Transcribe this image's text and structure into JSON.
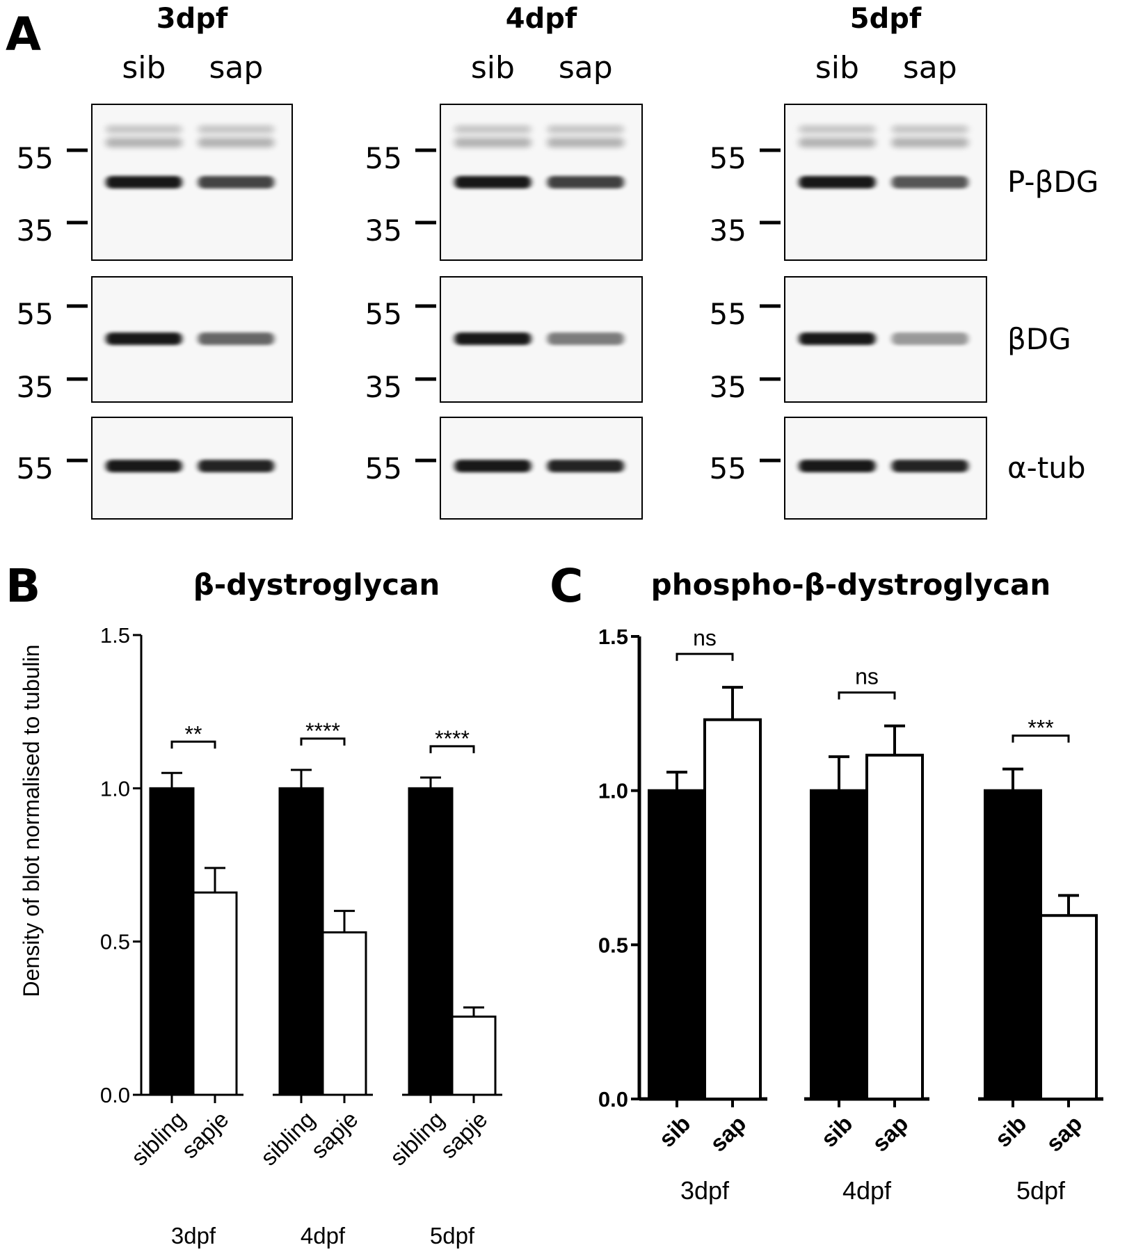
{
  "panel_a": {
    "letter": "A",
    "blots": [
      {
        "title": "3dpf",
        "lanes": [
          "sib",
          "sap"
        ]
      },
      {
        "title": "4dpf",
        "lanes": [
          "sib",
          "sap"
        ]
      },
      {
        "title": "5dpf",
        "lanes": [
          "sib",
          "sap"
        ]
      }
    ],
    "rows": [
      {
        "label": "P-βDG",
        "markers": [
          "55",
          "35"
        ]
      },
      {
        "label": "βDG",
        "markers": [
          "55",
          "35"
        ]
      },
      {
        "label": "α-tub",
        "markers": [
          "55"
        ]
      }
    ]
  },
  "panel_b": {
    "letter": "B"
  },
  "panel_c": {
    "letter": "C"
  },
  "chart_data": [
    {
      "type": "bar",
      "title": "β-dystroglycan",
      "ylabel": "Density of blot normalised to tubulin",
      "ylim": [
        0,
        1.5
      ],
      "yticks": [
        "0.0",
        "0.5",
        "1.0",
        "1.5"
      ],
      "groups": [
        "3dpf",
        "4dpf",
        "5dpf"
      ],
      "categories": [
        "sibling",
        "sapje"
      ],
      "bars": [
        {
          "group": "3dpf",
          "category": "sibling",
          "value": 1.0,
          "error": 0.05,
          "fill": "#000000"
        },
        {
          "group": "3dpf",
          "category": "sapje",
          "value": 0.66,
          "error": 0.08,
          "fill": "#ffffff"
        },
        {
          "group": "4dpf",
          "category": "sibling",
          "value": 1.0,
          "error": 0.06,
          "fill": "#000000"
        },
        {
          "group": "4dpf",
          "category": "sapje",
          "value": 0.53,
          "error": 0.07,
          "fill": "#ffffff"
        },
        {
          "group": "5dpf",
          "category": "sibling",
          "value": 1.0,
          "error": 0.035,
          "fill": "#000000"
        },
        {
          "group": "5dpf",
          "category": "sapje",
          "value": 0.255,
          "error": 0.03,
          "fill": "#ffffff"
        }
      ],
      "significance": [
        {
          "group": "3dpf",
          "label": "**"
        },
        {
          "group": "4dpf",
          "label": "****"
        },
        {
          "group": "5dpf",
          "label": "****"
        }
      ]
    },
    {
      "type": "bar",
      "title": "phospho-β-dystroglycan",
      "ylabel": "",
      "ylim": [
        0,
        1.5
      ],
      "yticks": [
        "0.0",
        "0.5",
        "1.0",
        "1.5"
      ],
      "groups": [
        "3dpf",
        "4dpf",
        "5dpf"
      ],
      "categories": [
        "sib",
        "sap"
      ],
      "bars": [
        {
          "group": "3dpf",
          "category": "sib",
          "value": 1.0,
          "error": 0.06,
          "fill": "#000000"
        },
        {
          "group": "3dpf",
          "category": "sap",
          "value": 1.23,
          "error": 0.105,
          "fill": "#ffffff"
        },
        {
          "group": "4dpf",
          "category": "sib",
          "value": 1.0,
          "error": 0.11,
          "fill": "#000000"
        },
        {
          "group": "4dpf",
          "category": "sap",
          "value": 1.115,
          "error": 0.095,
          "fill": "#ffffff"
        },
        {
          "group": "5dpf",
          "category": "sib",
          "value": 1.0,
          "error": 0.07,
          "fill": "#000000"
        },
        {
          "group": "5dpf",
          "category": "sap",
          "value": 0.595,
          "error": 0.065,
          "fill": "#ffffff"
        }
      ],
      "significance": [
        {
          "group": "3dpf",
          "label": "ns"
        },
        {
          "group": "4dpf",
          "label": "ns"
        },
        {
          "group": "5dpf",
          "label": "***"
        }
      ]
    }
  ]
}
